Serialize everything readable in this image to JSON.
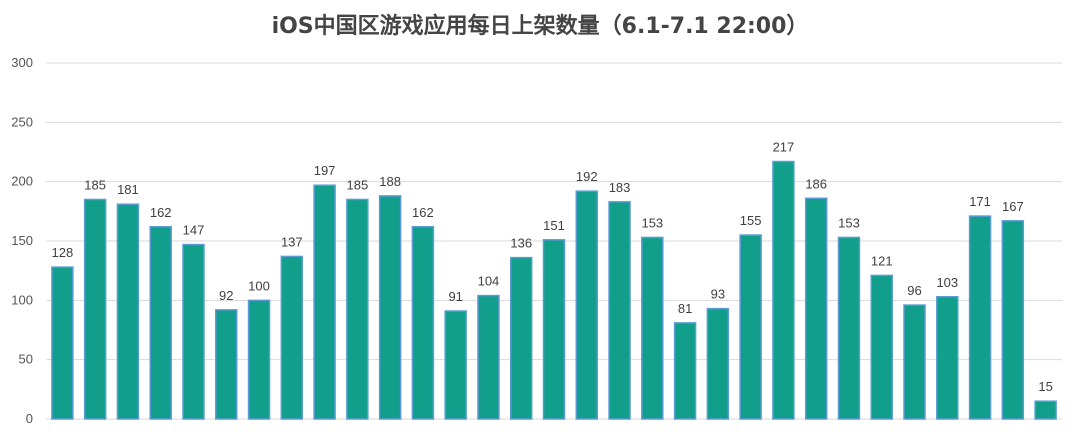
{
  "chart_data": {
    "type": "bar",
    "title": "iOS中国区游戏应用每日上架数量（6.1-7.1 22:00）",
    "xlabel": "",
    "ylabel": "",
    "ylim": [
      0,
      300
    ],
    "yticks": [
      0,
      50,
      100,
      150,
      200,
      250,
      300
    ],
    "grid": true,
    "legend": "none",
    "bar_color": "#119E8A",
    "bar_edge_color": "#5B9BD5",
    "values": [
      128,
      185,
      181,
      162,
      147,
      92,
      100,
      137,
      197,
      185,
      188,
      162,
      91,
      104,
      136,
      151,
      192,
      183,
      153,
      81,
      93,
      155,
      217,
      186,
      153,
      121,
      96,
      103,
      171,
      167,
      15
    ],
    "data_labels": true
  }
}
